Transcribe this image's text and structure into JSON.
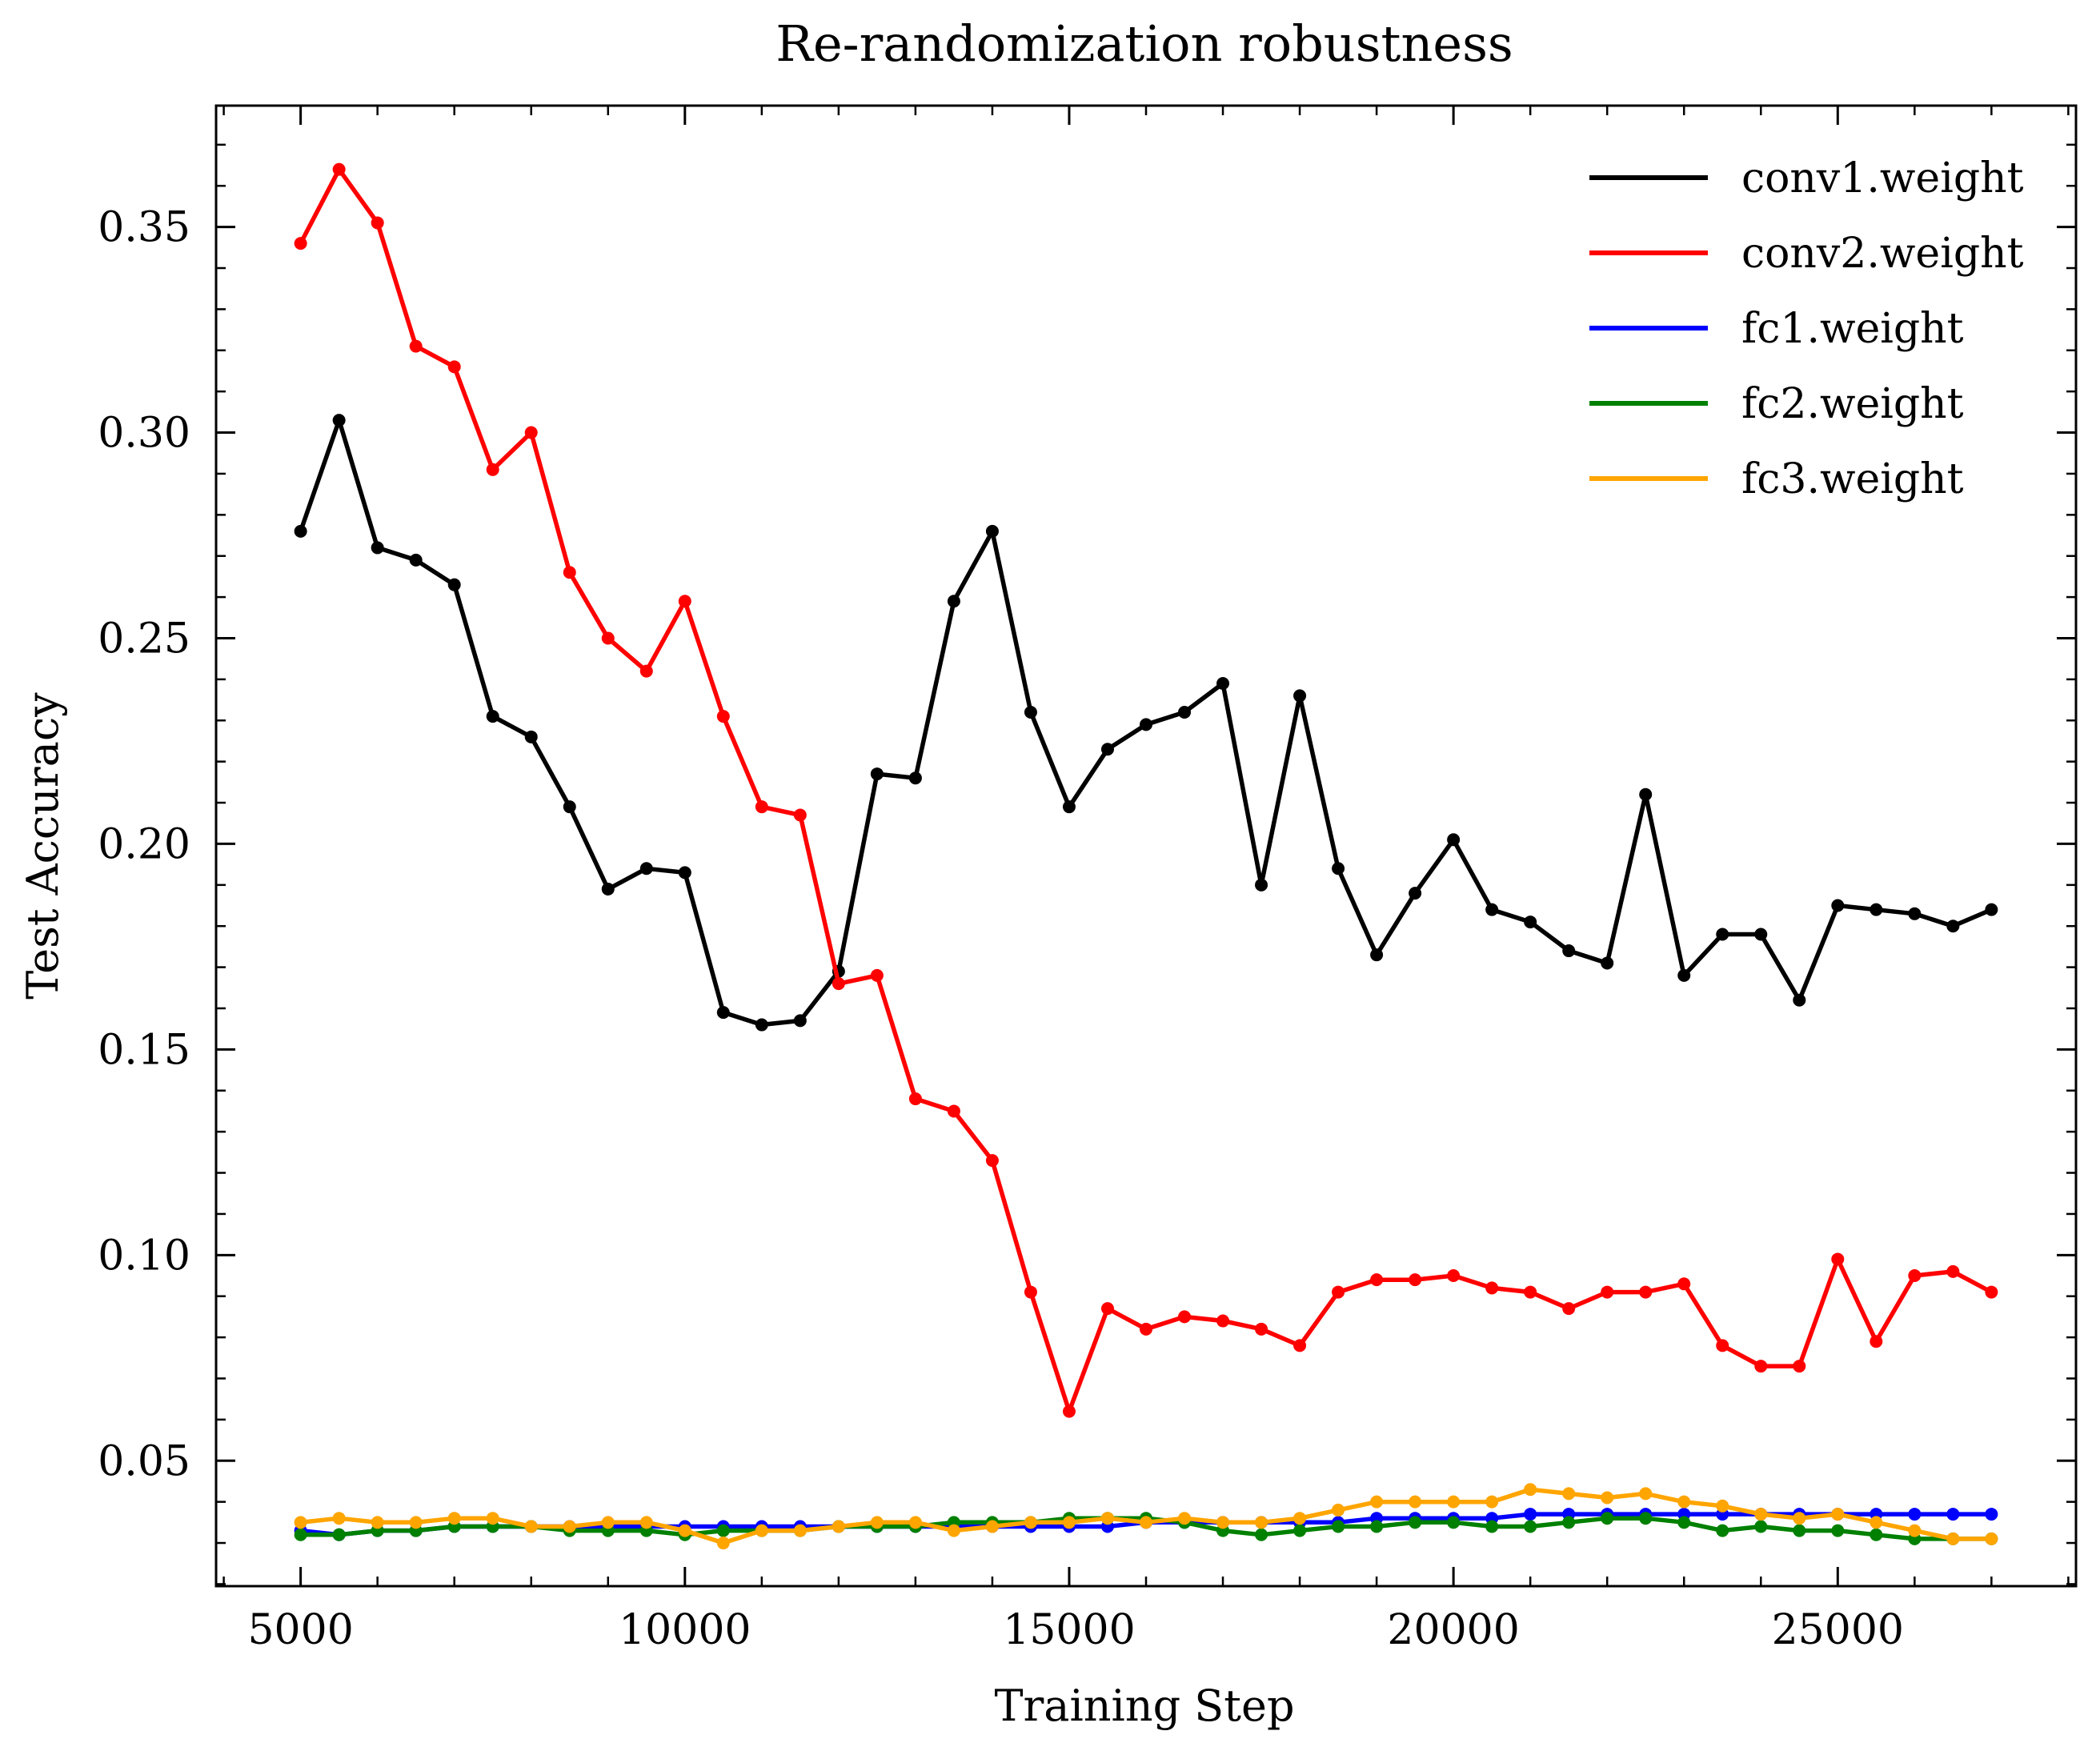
{
  "chart_data": {
    "type": "line",
    "title": "Re-randomization robustness",
    "xlabel": "Training Step",
    "ylabel": "Test Accuracy",
    "xlim": [
      3900,
      28100
    ],
    "ylim": [
      0.0195,
      0.3795
    ],
    "xticks": [
      5000,
      10000,
      15000,
      20000,
      25000
    ],
    "xtick_labels": [
      "5000",
      "10000",
      "15000",
      "20000",
      "25000"
    ],
    "yticks": [
      0.05,
      0.1,
      0.15,
      0.2,
      0.25,
      0.3,
      0.35
    ],
    "ytick_labels": [
      "0.05",
      "0.10",
      "0.15",
      "0.20",
      "0.25",
      "0.30",
      "0.35"
    ],
    "grid": false,
    "legend_position": "top-right",
    "x": [
      5000,
      5500,
      6000,
      6500,
      7000,
      7500,
      8000,
      8500,
      9000,
      9500,
      10000,
      10500,
      11000,
      11500,
      12000,
      12500,
      13000,
      13500,
      14000,
      14500,
      15000,
      15500,
      16000,
      16500,
      17000,
      17500,
      18000,
      18500,
      19000,
      19500,
      20000,
      20500,
      21000,
      21500,
      22000,
      22500,
      23000,
      23500,
      24000,
      24500,
      25000,
      25500,
      26000,
      26500,
      27000
    ],
    "series": [
      {
        "name": "conv1.weight",
        "color": "#000000",
        "values": [
          0.276,
          0.303,
          0.272,
          0.269,
          0.263,
          0.231,
          0.226,
          0.209,
          0.189,
          0.194,
          0.193,
          0.159,
          0.156,
          0.157,
          0.169,
          0.217,
          0.216,
          0.259,
          0.276,
          0.232,
          0.209,
          0.223,
          0.229,
          0.232,
          0.239,
          0.19,
          0.236,
          0.194,
          0.173,
          0.188,
          0.201,
          0.184,
          0.181,
          0.174,
          0.171,
          0.212,
          0.168,
          0.178,
          0.178,
          0.162,
          0.185,
          0.184,
          0.183,
          0.18,
          0.184
        ]
      },
      {
        "name": "conv2.weight",
        "color": "#ff0000",
        "values": [
          0.346,
          0.364,
          0.351,
          0.321,
          0.316,
          0.291,
          0.3,
          0.266,
          0.25,
          0.242,
          0.259,
          0.231,
          0.209,
          0.207,
          0.166,
          0.168,
          0.138,
          0.135,
          0.123,
          0.091,
          0.062,
          0.087,
          0.082,
          0.085,
          0.084,
          0.082,
          0.078,
          0.091,
          0.094,
          0.094,
          0.095,
          0.092,
          0.091,
          0.087,
          0.091,
          0.091,
          0.093,
          0.078,
          0.073,
          0.073,
          0.099,
          0.079,
          0.095,
          0.096,
          0.091
        ]
      },
      {
        "name": "fc1.weight",
        "color": "#0000ff",
        "values": [
          0.033,
          0.032,
          0.033,
          0.033,
          0.034,
          0.034,
          0.034,
          0.034,
          0.034,
          0.034,
          0.034,
          0.034,
          0.034,
          0.034,
          0.034,
          0.034,
          0.034,
          0.034,
          0.034,
          0.034,
          0.034,
          0.034,
          0.035,
          0.035,
          0.035,
          0.035,
          0.035,
          0.035,
          0.036,
          0.036,
          0.036,
          0.036,
          0.037,
          0.037,
          0.037,
          0.037,
          0.037,
          0.037,
          0.037,
          0.037,
          0.037,
          0.037,
          0.037,
          0.037,
          0.037
        ]
      },
      {
        "name": "fc2.weight",
        "color": "#008000",
        "values": [
          0.032,
          0.032,
          0.033,
          0.033,
          0.034,
          0.034,
          0.034,
          0.033,
          0.033,
          0.033,
          0.032,
          0.033,
          0.033,
          0.033,
          0.034,
          0.034,
          0.034,
          0.035,
          0.035,
          0.035,
          0.036,
          0.036,
          0.036,
          0.035,
          0.033,
          0.032,
          0.033,
          0.034,
          0.034,
          0.035,
          0.035,
          0.034,
          0.034,
          0.035,
          0.036,
          0.036,
          0.035,
          0.033,
          0.034,
          0.033,
          0.033,
          0.032,
          0.031,
          0.031,
          0.031
        ]
      },
      {
        "name": "fc3.weight",
        "color": "#ffa500",
        "values": [
          0.035,
          0.036,
          0.035,
          0.035,
          0.036,
          0.036,
          0.034,
          0.034,
          0.035,
          0.035,
          0.033,
          0.03,
          0.033,
          0.033,
          0.034,
          0.035,
          0.035,
          0.033,
          0.034,
          0.035,
          0.035,
          0.036,
          0.035,
          0.036,
          0.035,
          0.035,
          0.036,
          0.038,
          0.04,
          0.04,
          0.04,
          0.04,
          0.043,
          0.042,
          0.041,
          0.042,
          0.04,
          0.039,
          0.037,
          0.036,
          0.037,
          0.035,
          0.033,
          0.031,
          0.031
        ]
      }
    ]
  }
}
